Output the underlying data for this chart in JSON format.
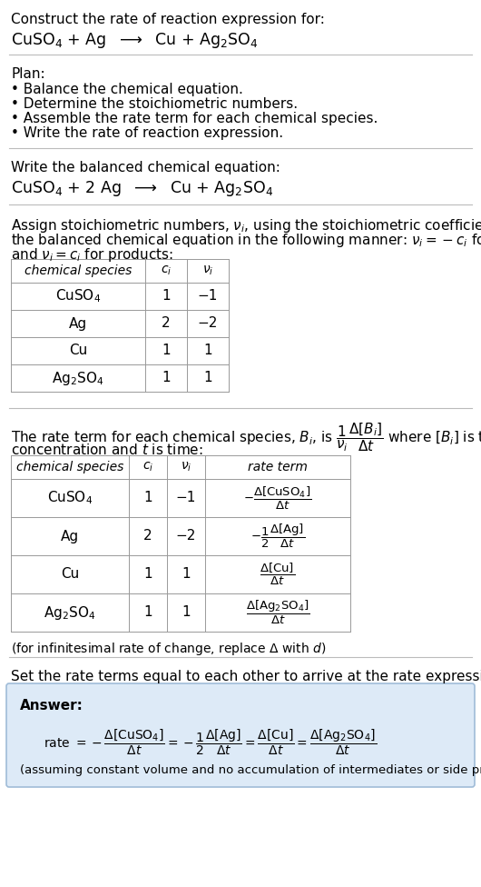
{
  "bg_color": "#ffffff",
  "text_color": "#000000",
  "answer_bg_color": "#ddeaf7",
  "answer_border_color": "#a0bcd8",
  "header_line1": "Construct the rate of reaction expression for:",
  "header_line2": "CuSO$_4$ + Ag  $\\longrightarrow$  Cu + Ag$_2$SO$_4$",
  "plan_title": "Plan:",
  "plan_items": [
    "• Balance the chemical equation.",
    "• Determine the stoichiometric numbers.",
    "• Assemble the rate term for each chemical species.",
    "• Write the rate of reaction expression."
  ],
  "balanced_title": "Write the balanced chemical equation:",
  "balanced_eq": "CuSO$_4$ + 2 Ag  $\\longrightarrow$  Cu + Ag$_2$SO$_4$",
  "stoich_line1": "Assign stoichiometric numbers, $\\nu_i$, using the stoichiometric coefficients, $c_i$, from",
  "stoich_line2": "the balanced chemical equation in the following manner: $\\nu_i = -c_i$ for reactants",
  "stoich_line3": "and $\\nu_i = c_i$ for products:",
  "table1_headers": [
    "chemical species",
    "$c_i$",
    "$\\nu_i$"
  ],
  "table1_rows": [
    [
      "CuSO$_4$",
      "1",
      "−1"
    ],
    [
      "Ag",
      "2",
      "−2"
    ],
    [
      "Cu",
      "1",
      "1"
    ],
    [
      "Ag$_2$SO$_4$",
      "1",
      "1"
    ]
  ],
  "rate_line1": "The rate term for each chemical species, $B_i$, is $\\dfrac{1}{\\nu_i}\\dfrac{\\Delta[B_i]}{\\Delta t}$ where $[B_i]$ is the amount",
  "rate_line2": "concentration and $t$ is time:",
  "table2_headers": [
    "chemical species",
    "$c_i$",
    "$\\nu_i$",
    "rate term"
  ],
  "table2_rows": [
    [
      "CuSO$_4$",
      "1",
      "−1"
    ],
    [
      "Ag",
      "2",
      "−2"
    ],
    [
      "Cu",
      "1",
      "1"
    ],
    [
      "Ag$_2$SO$_4$",
      "1",
      "1"
    ]
  ],
  "table2_rate_terms": [
    "$-\\dfrac{\\Delta[\\mathrm{CuSO_4}]}{\\Delta t}$",
    "$-\\dfrac{1}{2}\\dfrac{\\Delta[\\mathrm{Ag}]}{\\Delta t}$",
    "$\\dfrac{\\Delta[\\mathrm{Cu}]}{\\Delta t}$",
    "$\\dfrac{\\Delta[\\mathrm{Ag_2SO_4}]}{\\Delta t}$"
  ],
  "infinitesimal": "(for infinitesimal rate of change, replace $\\Delta$ with $d$)",
  "set_equal_text": "Set the rate terms equal to each other to arrive at the rate expression:",
  "answer_label": "Answer:",
  "answer_rate": "rate $= -\\dfrac{\\Delta[\\mathrm{CuSO_4}]}{\\Delta t} = -\\dfrac{1}{2}\\dfrac{\\Delta[\\mathrm{Ag}]}{\\Delta t} = \\dfrac{\\Delta[\\mathrm{Cu}]}{\\Delta t} = \\dfrac{\\Delta[\\mathrm{Ag_2SO_4}]}{\\Delta t}$",
  "answer_note": "(assuming constant volume and no accumulation of intermediates or side products)"
}
